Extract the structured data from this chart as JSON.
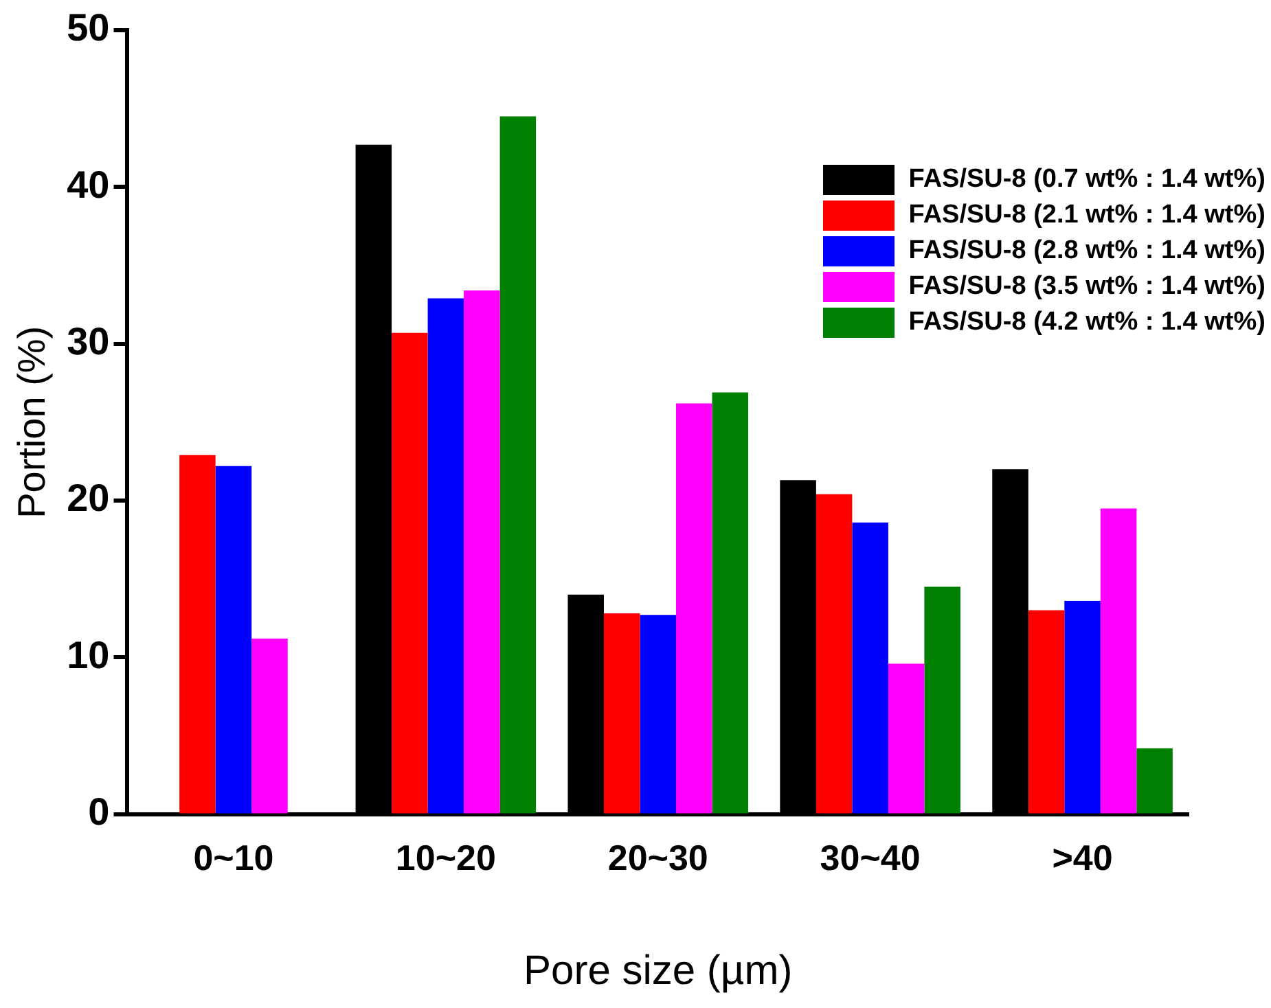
{
  "chart_data": {
    "type": "bar",
    "xlabel": "Pore size (µm)",
    "ylabel": "Portion (%)",
    "categories": [
      "0~10",
      "10~20",
      "20~30",
      "30~40",
      ">40"
    ],
    "series": [
      {
        "name": "FAS/SU-8 (0.7 wt% : 1.4 wt%)",
        "color": "#000000",
        "values": [
          0,
          42.7,
          14.0,
          21.3,
          22.0
        ]
      },
      {
        "name": "FAS/SU-8 (2.1 wt% : 1.4 wt%)",
        "color": "#ff0000",
        "values": [
          22.9,
          30.7,
          12.8,
          20.4,
          13.0
        ]
      },
      {
        "name": "FAS/SU-8 (2.8 wt% : 1.4 wt%)",
        "color": "#0000ff",
        "values": [
          22.2,
          32.9,
          12.7,
          18.6,
          13.6
        ]
      },
      {
        "name": "FAS/SU-8 (3.5 wt% : 1.4 wt%)",
        "color": "#ff00ff",
        "values": [
          11.2,
          33.4,
          26.2,
          9.6,
          19.5
        ]
      },
      {
        "name": "FAS/SU-8 (4.2 wt% : 1.4 wt%)",
        "color": "#008000",
        "values": [
          0,
          44.5,
          26.9,
          14.5,
          4.2
        ]
      }
    ],
    "ylim": [
      0,
      50
    ],
    "yticks": [
      0,
      10,
      20,
      30,
      40,
      50
    ],
    "grid": false,
    "legend": "top right"
  }
}
